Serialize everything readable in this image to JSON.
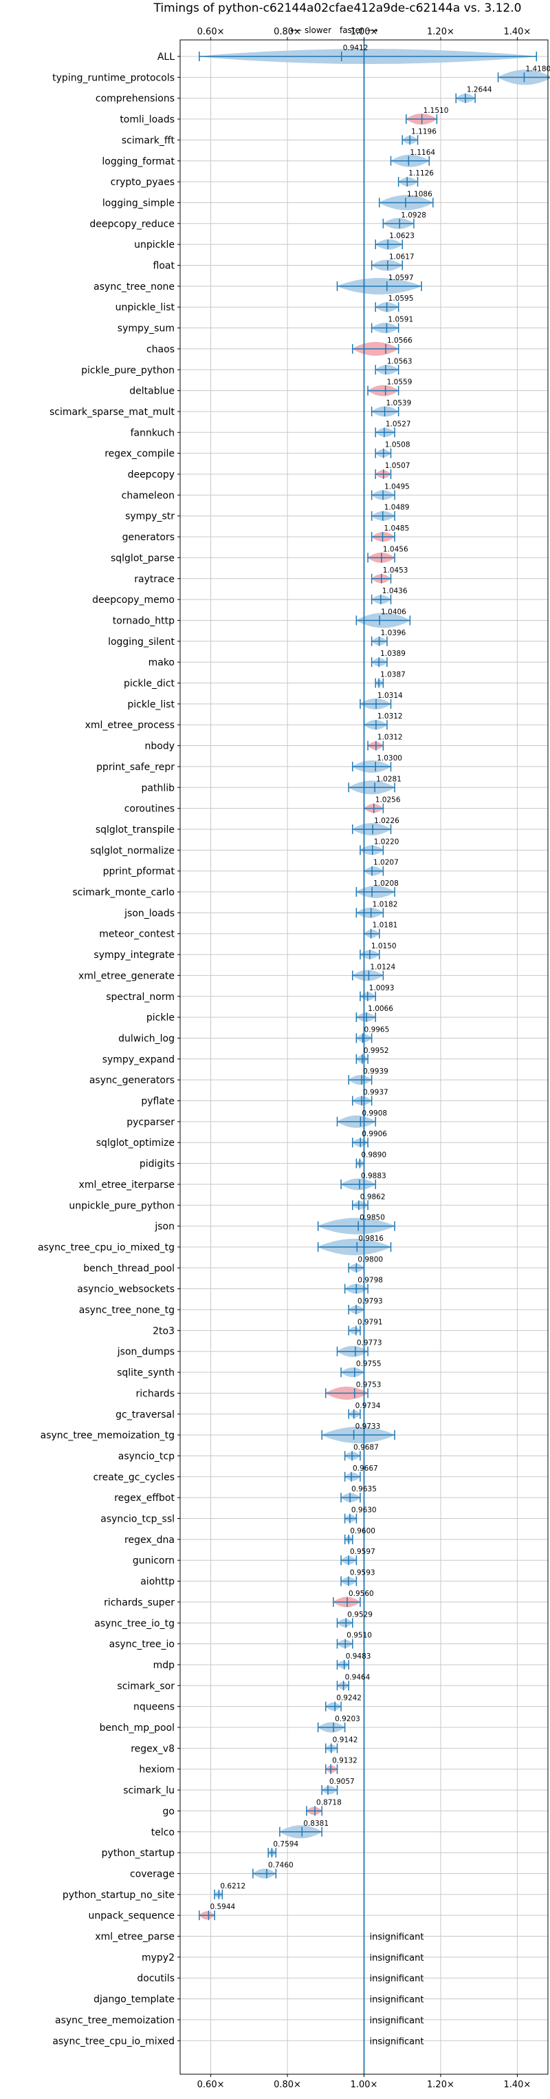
{
  "chart_data": {
    "type": "violin",
    "title": "Timings of python-c62144a02cfae412a9de-c62144a vs. 3.12.0",
    "direction_labels": {
      "slower": "⟵ slower",
      "faster": "faster ⟶"
    },
    "xlim": [
      0.52,
      1.48
    ],
    "x_ticks": [
      {
        "value": 0.6,
        "label": "0.60×"
      },
      {
        "value": 0.8,
        "label": "0.80×"
      },
      {
        "value": 1.0,
        "label": "1.00×"
      },
      {
        "value": 1.2,
        "label": "1.20×"
      },
      {
        "value": 1.4,
        "label": "1.40×"
      }
    ],
    "reference_line": 1.0,
    "grid": true,
    "insignificant_label": "insignificant",
    "colors": {
      "normal": "#1f77b4",
      "normal_fill": "#a9cbe6",
      "highlight_fill": "#f2a6ad",
      "reference": "#1f77b4",
      "grid": "#c8c8c8"
    },
    "benchmarks": [
      {
        "name": "ALL",
        "mean": 0.9412,
        "label": "0.9412",
        "min": 0.57,
        "max": 1.45,
        "highlight": false
      },
      {
        "name": "typing_runtime_protocols",
        "mean": 1.418,
        "label": "1.4180",
        "min": 1.35,
        "max": 1.49,
        "highlight": false
      },
      {
        "name": "comprehensions",
        "mean": 1.2644,
        "label": "1.2644",
        "min": 1.24,
        "max": 1.29,
        "highlight": false
      },
      {
        "name": "tomli_loads",
        "mean": 1.151,
        "label": "1.1510",
        "min": 1.11,
        "max": 1.19,
        "highlight": true
      },
      {
        "name": "scimark_fft",
        "mean": 1.1196,
        "label": "1.1196",
        "min": 1.1,
        "max": 1.14,
        "highlight": false
      },
      {
        "name": "logging_format",
        "mean": 1.1164,
        "label": "1.1164",
        "min": 1.07,
        "max": 1.17,
        "highlight": false
      },
      {
        "name": "crypto_pyaes",
        "mean": 1.1126,
        "label": "1.1126",
        "min": 1.09,
        "max": 1.14,
        "highlight": false
      },
      {
        "name": "logging_simple",
        "mean": 1.1086,
        "label": "1.1086",
        "min": 1.04,
        "max": 1.18,
        "highlight": false
      },
      {
        "name": "deepcopy_reduce",
        "mean": 1.0928,
        "label": "1.0928",
        "min": 1.05,
        "max": 1.13,
        "highlight": false
      },
      {
        "name": "unpickle",
        "mean": 1.0623,
        "label": "1.0623",
        "min": 1.03,
        "max": 1.1,
        "highlight": false
      },
      {
        "name": "float",
        "mean": 1.0617,
        "label": "1.0617",
        "min": 1.02,
        "max": 1.1,
        "highlight": false
      },
      {
        "name": "async_tree_none",
        "mean": 1.0597,
        "label": "1.0597",
        "min": 0.93,
        "max": 1.15,
        "highlight": false
      },
      {
        "name": "unpickle_list",
        "mean": 1.0595,
        "label": "1.0595",
        "min": 1.03,
        "max": 1.09,
        "highlight": false
      },
      {
        "name": "sympy_sum",
        "mean": 1.0591,
        "label": "1.0591",
        "min": 1.02,
        "max": 1.09,
        "highlight": false
      },
      {
        "name": "chaos",
        "mean": 1.0566,
        "label": "1.0566",
        "min": 0.97,
        "max": 1.09,
        "highlight": true
      },
      {
        "name": "pickle_pure_python",
        "mean": 1.0563,
        "label": "1.0563",
        "min": 1.03,
        "max": 1.09,
        "highlight": false
      },
      {
        "name": "deltablue",
        "mean": 1.0559,
        "label": "1.0559",
        "min": 1.01,
        "max": 1.09,
        "highlight": true
      },
      {
        "name": "scimark_sparse_mat_mult",
        "mean": 1.0539,
        "label": "1.0539",
        "min": 1.02,
        "max": 1.09,
        "highlight": false
      },
      {
        "name": "fannkuch",
        "mean": 1.0527,
        "label": "1.0527",
        "min": 1.03,
        "max": 1.08,
        "highlight": false
      },
      {
        "name": "regex_compile",
        "mean": 1.0508,
        "label": "1.0508",
        "min": 1.03,
        "max": 1.07,
        "highlight": false
      },
      {
        "name": "deepcopy",
        "mean": 1.0507,
        "label": "1.0507",
        "min": 1.03,
        "max": 1.07,
        "highlight": true
      },
      {
        "name": "chameleon",
        "mean": 1.0495,
        "label": "1.0495",
        "min": 1.02,
        "max": 1.08,
        "highlight": false
      },
      {
        "name": "sympy_str",
        "mean": 1.0489,
        "label": "1.0489",
        "min": 1.02,
        "max": 1.08,
        "highlight": false
      },
      {
        "name": "generators",
        "mean": 1.0485,
        "label": "1.0485",
        "min": 1.02,
        "max": 1.08,
        "highlight": true
      },
      {
        "name": "sqlglot_parse",
        "mean": 1.0456,
        "label": "1.0456",
        "min": 1.01,
        "max": 1.08,
        "highlight": true
      },
      {
        "name": "raytrace",
        "mean": 1.0453,
        "label": "1.0453",
        "min": 1.02,
        "max": 1.07,
        "highlight": true
      },
      {
        "name": "deepcopy_memo",
        "mean": 1.0436,
        "label": "1.0436",
        "min": 1.02,
        "max": 1.07,
        "highlight": false
      },
      {
        "name": "tornado_http",
        "mean": 1.0406,
        "label": "1.0406",
        "min": 0.98,
        "max": 1.12,
        "highlight": false
      },
      {
        "name": "logging_silent",
        "mean": 1.0396,
        "label": "1.0396",
        "min": 1.02,
        "max": 1.06,
        "highlight": false
      },
      {
        "name": "mako",
        "mean": 1.0389,
        "label": "1.0389",
        "min": 1.02,
        "max": 1.06,
        "highlight": false
      },
      {
        "name": "pickle_dict",
        "mean": 1.0387,
        "label": "1.0387",
        "min": 1.03,
        "max": 1.05,
        "highlight": false
      },
      {
        "name": "pickle_list",
        "mean": 1.0314,
        "label": "1.0314",
        "min": 0.99,
        "max": 1.07,
        "highlight": false
      },
      {
        "name": "xml_etree_process",
        "mean": 1.0312,
        "label": "1.0312",
        "min": 1.0,
        "max": 1.06,
        "highlight": false
      },
      {
        "name": "nbody",
        "mean": 1.0312,
        "label": "1.0312",
        "min": 1.01,
        "max": 1.05,
        "highlight": true
      },
      {
        "name": "pprint_safe_repr",
        "mean": 1.03,
        "label": "1.0300",
        "min": 0.97,
        "max": 1.07,
        "highlight": false
      },
      {
        "name": "pathlib",
        "mean": 1.0281,
        "label": "1.0281",
        "min": 0.96,
        "max": 1.08,
        "highlight": false
      },
      {
        "name": "coroutines",
        "mean": 1.0256,
        "label": "1.0256",
        "min": 1.0,
        "max": 1.05,
        "highlight": true
      },
      {
        "name": "sqlglot_transpile",
        "mean": 1.0226,
        "label": "1.0226",
        "min": 0.97,
        "max": 1.07,
        "highlight": false
      },
      {
        "name": "sqlglot_normalize",
        "mean": 1.022,
        "label": "1.0220",
        "min": 0.99,
        "max": 1.05,
        "highlight": false
      },
      {
        "name": "pprint_pformat",
        "mean": 1.0207,
        "label": "1.0207",
        "min": 1.0,
        "max": 1.05,
        "highlight": false
      },
      {
        "name": "scimark_monte_carlo",
        "mean": 1.0208,
        "label": "1.0208",
        "min": 0.98,
        "max": 1.08,
        "highlight": false
      },
      {
        "name": "json_loads",
        "mean": 1.0182,
        "label": "1.0182",
        "min": 0.98,
        "max": 1.05,
        "highlight": false
      },
      {
        "name": "meteor_contest",
        "mean": 1.0181,
        "label": "1.0181",
        "min": 1.0,
        "max": 1.04,
        "highlight": false
      },
      {
        "name": "sympy_integrate",
        "mean": 1.015,
        "label": "1.0150",
        "min": 0.99,
        "max": 1.04,
        "highlight": false
      },
      {
        "name": "xml_etree_generate",
        "mean": 1.0124,
        "label": "1.0124",
        "min": 0.97,
        "max": 1.05,
        "highlight": false
      },
      {
        "name": "spectral_norm",
        "mean": 1.0093,
        "label": "1.0093",
        "min": 0.99,
        "max": 1.03,
        "highlight": false
      },
      {
        "name": "pickle",
        "mean": 1.0066,
        "label": "1.0066",
        "min": 0.98,
        "max": 1.03,
        "highlight": false
      },
      {
        "name": "dulwich_log",
        "mean": 0.9965,
        "label": "0.9965",
        "min": 0.98,
        "max": 1.02,
        "highlight": false
      },
      {
        "name": "sympy_expand",
        "mean": 0.9952,
        "label": "0.9952",
        "min": 0.98,
        "max": 1.01,
        "highlight": false
      },
      {
        "name": "async_generators",
        "mean": 0.9939,
        "label": "0.9939",
        "min": 0.96,
        "max": 1.02,
        "highlight": false
      },
      {
        "name": "pyflate",
        "mean": 0.9937,
        "label": "0.9937",
        "min": 0.97,
        "max": 1.02,
        "highlight": false
      },
      {
        "name": "pycparser",
        "mean": 0.9908,
        "label": "0.9908",
        "min": 0.93,
        "max": 1.03,
        "highlight": false
      },
      {
        "name": "sqlglot_optimize",
        "mean": 0.9906,
        "label": "0.9906",
        "min": 0.97,
        "max": 1.01,
        "highlight": false
      },
      {
        "name": "pidigits",
        "mean": 0.989,
        "label": "0.9890",
        "min": 0.98,
        "max": 1.0,
        "highlight": false
      },
      {
        "name": "xml_etree_iterparse",
        "mean": 0.9883,
        "label": "0.9883",
        "min": 0.94,
        "max": 1.03,
        "highlight": false
      },
      {
        "name": "unpickle_pure_python",
        "mean": 0.9862,
        "label": "0.9862",
        "min": 0.97,
        "max": 1.01,
        "highlight": false
      },
      {
        "name": "json",
        "mean": 0.985,
        "label": "0.9850",
        "min": 0.88,
        "max": 1.08,
        "highlight": false
      },
      {
        "name": "async_tree_cpu_io_mixed_tg",
        "mean": 0.9816,
        "label": "0.9816",
        "min": 0.88,
        "max": 1.07,
        "highlight": false
      },
      {
        "name": "bench_thread_pool",
        "mean": 0.98,
        "label": "0.9800",
        "min": 0.96,
        "max": 1.0,
        "highlight": false
      },
      {
        "name": "asyncio_websockets",
        "mean": 0.9798,
        "label": "0.9798",
        "min": 0.95,
        "max": 1.01,
        "highlight": false
      },
      {
        "name": "async_tree_none_tg",
        "mean": 0.9793,
        "label": "0.9793",
        "min": 0.96,
        "max": 1.0,
        "highlight": false
      },
      {
        "name": "2to3",
        "mean": 0.9791,
        "label": "0.9791",
        "min": 0.96,
        "max": 0.99,
        "highlight": false
      },
      {
        "name": "json_dumps",
        "mean": 0.9773,
        "label": "0.9773",
        "min": 0.93,
        "max": 1.01,
        "highlight": false
      },
      {
        "name": "sqlite_synth",
        "mean": 0.9755,
        "label": "0.9755",
        "min": 0.94,
        "max": 1.0,
        "highlight": false
      },
      {
        "name": "richards",
        "mean": 0.9753,
        "label": "0.9753",
        "min": 0.9,
        "max": 1.01,
        "highlight": true
      },
      {
        "name": "gc_traversal",
        "mean": 0.9734,
        "label": "0.9734",
        "min": 0.96,
        "max": 0.99,
        "highlight": false
      },
      {
        "name": "async_tree_memoization_tg",
        "mean": 0.9733,
        "label": "0.9733",
        "min": 0.89,
        "max": 1.08,
        "highlight": false
      },
      {
        "name": "asyncio_tcp",
        "mean": 0.9687,
        "label": "0.9687",
        "min": 0.95,
        "max": 0.99,
        "highlight": false
      },
      {
        "name": "create_gc_cycles",
        "mean": 0.9667,
        "label": "0.9667",
        "min": 0.95,
        "max": 0.99,
        "highlight": false
      },
      {
        "name": "regex_effbot",
        "mean": 0.9635,
        "label": "0.9635",
        "min": 0.94,
        "max": 0.99,
        "highlight": false
      },
      {
        "name": "asyncio_tcp_ssl",
        "mean": 0.963,
        "label": "0.9630",
        "min": 0.95,
        "max": 0.98,
        "highlight": false
      },
      {
        "name": "regex_dna",
        "mean": 0.96,
        "label": "0.9600",
        "min": 0.95,
        "max": 0.97,
        "highlight": false
      },
      {
        "name": "gunicorn",
        "mean": 0.9597,
        "label": "0.9597",
        "min": 0.94,
        "max": 0.98,
        "highlight": false
      },
      {
        "name": "aiohttp",
        "mean": 0.9593,
        "label": "0.9593",
        "min": 0.94,
        "max": 0.98,
        "highlight": false
      },
      {
        "name": "richards_super",
        "mean": 0.956,
        "label": "0.9560",
        "min": 0.92,
        "max": 0.99,
        "highlight": true
      },
      {
        "name": "async_tree_io_tg",
        "mean": 0.9529,
        "label": "0.9529",
        "min": 0.93,
        "max": 0.97,
        "highlight": false
      },
      {
        "name": "async_tree_io",
        "mean": 0.951,
        "label": "0.9510",
        "min": 0.93,
        "max": 0.97,
        "highlight": false
      },
      {
        "name": "mdp",
        "mean": 0.9483,
        "label": "0.9483",
        "min": 0.93,
        "max": 0.96,
        "highlight": false
      },
      {
        "name": "scimark_sor",
        "mean": 0.9464,
        "label": "0.9464",
        "min": 0.93,
        "max": 0.96,
        "highlight": false
      },
      {
        "name": "nqueens",
        "mean": 0.9242,
        "label": "0.9242",
        "min": 0.9,
        "max": 0.94,
        "highlight": false
      },
      {
        "name": "bench_mp_pool",
        "mean": 0.9203,
        "label": "0.9203",
        "min": 0.88,
        "max": 0.95,
        "highlight": false
      },
      {
        "name": "regex_v8",
        "mean": 0.9142,
        "label": "0.9142",
        "min": 0.9,
        "max": 0.93,
        "highlight": false
      },
      {
        "name": "hexiom",
        "mean": 0.9132,
        "label": "0.9132",
        "min": 0.9,
        "max": 0.93,
        "highlight": true
      },
      {
        "name": "scimark_lu",
        "mean": 0.9057,
        "label": "0.9057",
        "min": 0.89,
        "max": 0.93,
        "highlight": false
      },
      {
        "name": "go",
        "mean": 0.8718,
        "label": "0.8718",
        "min": 0.85,
        "max": 0.89,
        "highlight": true
      },
      {
        "name": "telco",
        "mean": 0.8381,
        "label": "0.8381",
        "min": 0.78,
        "max": 0.89,
        "highlight": false
      },
      {
        "name": "python_startup",
        "mean": 0.7594,
        "label": "0.7594",
        "min": 0.75,
        "max": 0.77,
        "highlight": false
      },
      {
        "name": "coverage",
        "mean": 0.746,
        "label": "0.7460",
        "min": 0.71,
        "max": 0.77,
        "highlight": false
      },
      {
        "name": "python_startup_no_site",
        "mean": 0.6212,
        "label": "0.6212",
        "min": 0.61,
        "max": 0.63,
        "highlight": false
      },
      {
        "name": "unpack_sequence",
        "mean": 0.5944,
        "label": "0.5944",
        "min": 0.57,
        "max": 0.61,
        "highlight": true
      },
      {
        "name": "xml_etree_parse",
        "insignificant": true
      },
      {
        "name": "mypy2",
        "insignificant": true
      },
      {
        "name": "docutils",
        "insignificant": true
      },
      {
        "name": "django_template",
        "insignificant": true
      },
      {
        "name": "async_tree_memoization",
        "insignificant": true
      },
      {
        "name": "async_tree_cpu_io_mixed",
        "insignificant": true
      }
    ]
  }
}
